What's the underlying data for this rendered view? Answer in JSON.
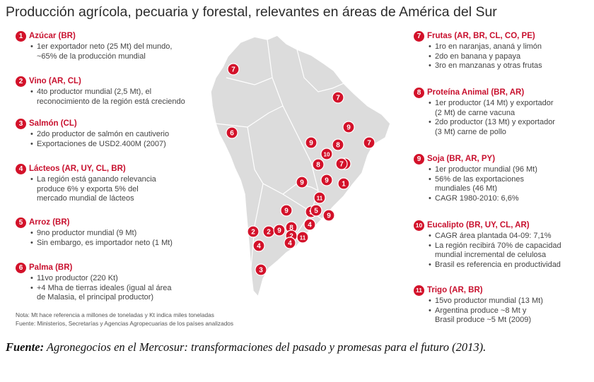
{
  "title": "Producción agrícola, pecuaria y forestal, relevantes en áreas de América del Sur",
  "items": [
    {
      "num": "1",
      "title": "Azúcar (BR)",
      "lines": [
        "1er exportador neto (25 Mt) del mundo,\n~65% de la producción mundial"
      ]
    },
    {
      "num": "2",
      "title": "Vino (AR, CL)",
      "lines": [
        "4to productor mundial (2,5 Mt), el\nreconocimiento de la región está creciendo"
      ]
    },
    {
      "num": "3",
      "title": "Salmón (CL)",
      "lines": [
        "2do productor de salmón en cautiverio",
        "Exportaciones de USD2.400M (2007)"
      ]
    },
    {
      "num": "4",
      "title": "Lácteos (AR, UY, CL, BR)",
      "lines": [
        "La región está ganando relevancia\nproduce 6% y exporta 5% del\nmercado mundial de lácteos"
      ]
    },
    {
      "num": "5",
      "title": "Arroz (BR)",
      "lines": [
        "9no productor mundial (9 Mt)",
        "Sin embargo, es importador neto (1 Mt)"
      ]
    },
    {
      "num": "6",
      "title": "Palma (BR)",
      "lines": [
        "11vo productor (220 Kt)",
        "+4 Mha de tierras ideales (igual al área\nde Malasia, el principal productor)"
      ]
    },
    {
      "num": "7",
      "title": "Frutas (AR, BR, CL, CO, PE)",
      "lines": [
        "1ro en naranjas, ananá y limón",
        "2do en banana y papaya",
        "3ro en manzanas y otras frutas"
      ]
    },
    {
      "num": "8",
      "title": "Proteína Animal (BR, AR)",
      "lines": [
        "1er productor (14 Mt) y exportador\n(2 Mt) de carne vacuna",
        "2do productor (13 Mt) y exportador\n(3 Mt) carne de pollo"
      ]
    },
    {
      "num": "9",
      "title": "Soja (BR, AR, PY)",
      "lines": [
        "1er productor mundial (96 Mt)",
        "56% de las exportaciones\nmundiales (46 Mt)",
        "CAGR 1980-2010: 6,6%"
      ]
    },
    {
      "num": "10",
      "title": "Eucalipto (BR, UY, CL, AR)",
      "lines": [
        "CAGR área plantada 04-09: 7,1%",
        "La región recibirá 70% de capacidad\nmundial incremental de celulosa",
        "Brasil es referencia en productividad"
      ]
    },
    {
      "num": "11",
      "title": "Trigo (AR, BR)",
      "lines": [
        "15vo productor mundial (13 Mt)",
        "Argentina produce ~8 Mt y\nBrasil produce ~5 Mt (2009)"
      ]
    }
  ],
  "map_markers": [
    "7",
    "7",
    "6",
    "9",
    "7",
    "7",
    "9",
    "8",
    "10",
    "8",
    "7",
    "9",
    "9",
    "1",
    "9",
    "11",
    "9",
    "5",
    "9",
    "8",
    "4",
    "2",
    "2",
    "9",
    "2",
    "4",
    "11",
    "4",
    "3"
  ],
  "notes": [
    "Nota: Mt hace referencia a millones de toneladas y Kt indica miles toneladas",
    "Fuente: Ministerios, Secretarías y Agencias Agropecuarias de los países analizados"
  ],
  "source": {
    "label": "Fuente:",
    "text": " Agronegocios en el Mercosur: transformaciones del pasado y promesas para el futuro (2013)."
  },
  "colors": {
    "accent": "#d3122a",
    "map_fill": "#dcdcdc",
    "map_stroke": "#ffffff"
  }
}
